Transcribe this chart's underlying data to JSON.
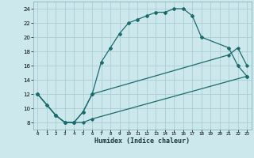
{
  "xlabel": "Humidex (Indice chaleur)",
  "bg_color": "#cce8ec",
  "grid_color": "#aacdd4",
  "line_color": "#1a6b6b",
  "xlim": [
    -0.5,
    23.5
  ],
  "ylim": [
    7,
    25
  ],
  "xticks": [
    0,
    1,
    2,
    3,
    4,
    5,
    6,
    7,
    8,
    9,
    10,
    11,
    12,
    13,
    14,
    15,
    16,
    17,
    18,
    19,
    20,
    21,
    22,
    23
  ],
  "yticks": [
    8,
    10,
    12,
    14,
    16,
    18,
    20,
    22,
    24
  ],
  "curve1_x": [
    0,
    1,
    2,
    3,
    4,
    5,
    6,
    7,
    8,
    9,
    10,
    11,
    12,
    13,
    14,
    15,
    16,
    17,
    18,
    21,
    22,
    23
  ],
  "curve1_y": [
    12,
    10.5,
    9,
    8,
    8,
    9.5,
    12,
    16.5,
    18.5,
    20.5,
    22,
    22.5,
    23,
    23.5,
    23.5,
    24,
    24,
    23,
    20,
    18.5,
    16,
    14.5
  ],
  "curve2_x": [
    0,
    2,
    3,
    4,
    5,
    6,
    23
  ],
  "curve2_y": [
    12,
    9,
    8,
    8,
    8,
    8.5,
    14.5
  ],
  "curve3_x": [
    0,
    2,
    3,
    4,
    5,
    6,
    21,
    22,
    23
  ],
  "curve3_y": [
    12,
    9,
    8,
    8,
    9.5,
    12,
    17.5,
    18.5,
    16
  ]
}
